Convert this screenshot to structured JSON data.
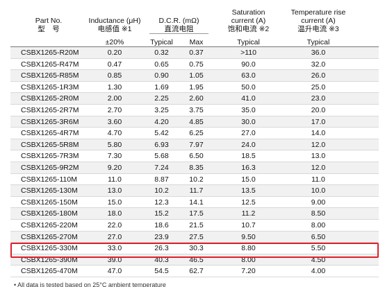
{
  "header": {
    "part_no": "Part No.",
    "part_no_cn": "型　号",
    "inductance": "Inductance (μH)",
    "inductance_cn": "电感值 ※1",
    "dcr": "D.C.R. (mΩ)",
    "dcr_cn": "直流电阻",
    "saturation": [
      "Saturation",
      "current (A)",
      "饱和电流 ※2"
    ],
    "temp_rise": [
      "Temperature rise",
      "current (A)",
      "温升电流 ※3"
    ]
  },
  "subheader": [
    "±20%",
    "Typical",
    "Max",
    "Typical",
    "Typical"
  ],
  "table": {
    "rows": [
      [
        "CSBX1265-R20M",
        "0.20",
        "0.32",
        "0.37",
        ">110",
        "36.0"
      ],
      [
        "CSBX1265-R47M",
        "0.47",
        "0.65",
        "0.75",
        "90.0",
        "32.0"
      ],
      [
        "CSBX1265-R85M",
        "0.85",
        "0.90",
        "1.05",
        "63.0",
        "26.0"
      ],
      [
        "CSBX1265-1R3M",
        "1.30",
        "1.69",
        "1.95",
        "50.0",
        "25.0"
      ],
      [
        "CSBX1265-2R0M",
        "2.00",
        "2.25",
        "2.60",
        "41.0",
        "23.0"
      ],
      [
        "CSBX1265-2R7M",
        "2.70",
        "3.25",
        "3.75",
        "35.0",
        "20.0"
      ],
      [
        "CSBX1265-3R6M",
        "3.60",
        "4.20",
        "4.85",
        "30.0",
        "17.0"
      ],
      [
        "CSBX1265-4R7M",
        "4.70",
        "5.42",
        "6.25",
        "27.0",
        "14.0"
      ],
      [
        "CSBX1265-5R8M",
        "5.80",
        "6.93",
        "7.97",
        "24.0",
        "12.0"
      ],
      [
        "CSBX1265-7R3M",
        "7.30",
        "5.68",
        "6.50",
        "18.5",
        "13.0"
      ],
      [
        "CSBX1265-9R2M",
        "9.20",
        "7.24",
        "8.35",
        "16.3",
        "12.0"
      ],
      [
        "CSBX1265-110M",
        "11.0",
        "8.87",
        "10.2",
        "15.0",
        "11.0"
      ],
      [
        "CSBX1265-130M",
        "13.0",
        "10.2",
        "11.7",
        "13.5",
        "10.0"
      ],
      [
        "CSBX1265-150M",
        "15.0",
        "12.3",
        "14.1",
        "12.5",
        "9.00"
      ],
      [
        "CSBX1265-180M",
        "18.0",
        "15.2",
        "17.5",
        "11.2",
        "8.50"
      ],
      [
        "CSBX1265-220M",
        "22.0",
        "18.6",
        "21.5",
        "10.7",
        "8.00"
      ],
      [
        "CSBX1265-270M",
        "27.0",
        "23.9",
        "27.5",
        "9.50",
        "6.50"
      ],
      [
        "CSBX1265-330M",
        "33.0",
        "26.3",
        "30.3",
        "8.80",
        "5.50"
      ],
      [
        "CSBX1265-390M",
        "39.0",
        "40.3",
        "46.5",
        "8.00",
        "4.50"
      ],
      [
        "CSBX1265-470M",
        "47.0",
        "54.5",
        "62.7",
        "7.20",
        "4.00"
      ]
    ]
  },
  "footnote": "• All data is tested based on 25°C ambient temperature"
}
